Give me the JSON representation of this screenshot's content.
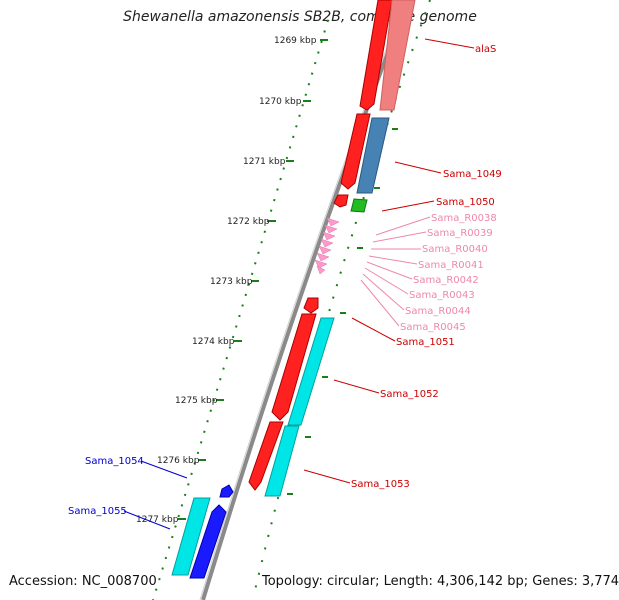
{
  "title": "Shewanella amazonensis SB2B, complete genome",
  "footer": {
    "accession": "Accession: NC_008700",
    "summary": "Topology: circular; Length: 4,306,142 bp; Genes: 3,774"
  },
  "ticks": [
    "1269 kbp",
    "1270 kbp",
    "1271 kbp",
    "1272 kbp",
    "1273 kbp",
    "1274 kbp",
    "1275 kbp",
    "1276 kbp",
    "1277 kbp"
  ],
  "colors": {
    "cds_forward": "#ff0000",
    "cds_forward_light": "#f08080",
    "cds_reverse": "#0000ff",
    "rRNA": "#cyan",
    "blast_hit_blue": "#4682b4",
    "blast_hit_cyan": "#00e5e5",
    "tRNA": "#ff99cc",
    "green_feature": "#22bb22",
    "backbone": "#808080",
    "ticks": "#1a7f1a"
  },
  "labels": [
    {
      "name": "alaS",
      "color": "#cc0000"
    },
    {
      "name": "Sama_1049",
      "color": "#cc0000"
    },
    {
      "name": "Sama_1050",
      "color": "#cc0000"
    },
    {
      "name": "Sama_R0038",
      "color": "#ee88aa"
    },
    {
      "name": "Sama_R0039",
      "color": "#ee88aa"
    },
    {
      "name": "Sama_R0040",
      "color": "#ee88aa"
    },
    {
      "name": "Sama_R0041",
      "color": "#ee88aa"
    },
    {
      "name": "Sama_R0042",
      "color": "#ee88aa"
    },
    {
      "name": "Sama_R0043",
      "color": "#ee88aa"
    },
    {
      "name": "Sama_R0044",
      "color": "#ee88aa"
    },
    {
      "name": "Sama_R0045",
      "color": "#ee88aa"
    },
    {
      "name": "Sama_1051",
      "color": "#cc0000"
    },
    {
      "name": "Sama_1052",
      "color": "#cc0000"
    },
    {
      "name": "Sama_1053",
      "color": "#cc0000"
    },
    {
      "name": "Sama_1054",
      "color": "#0000cc"
    },
    {
      "name": "Sama_1055",
      "color": "#0000cc"
    }
  ]
}
